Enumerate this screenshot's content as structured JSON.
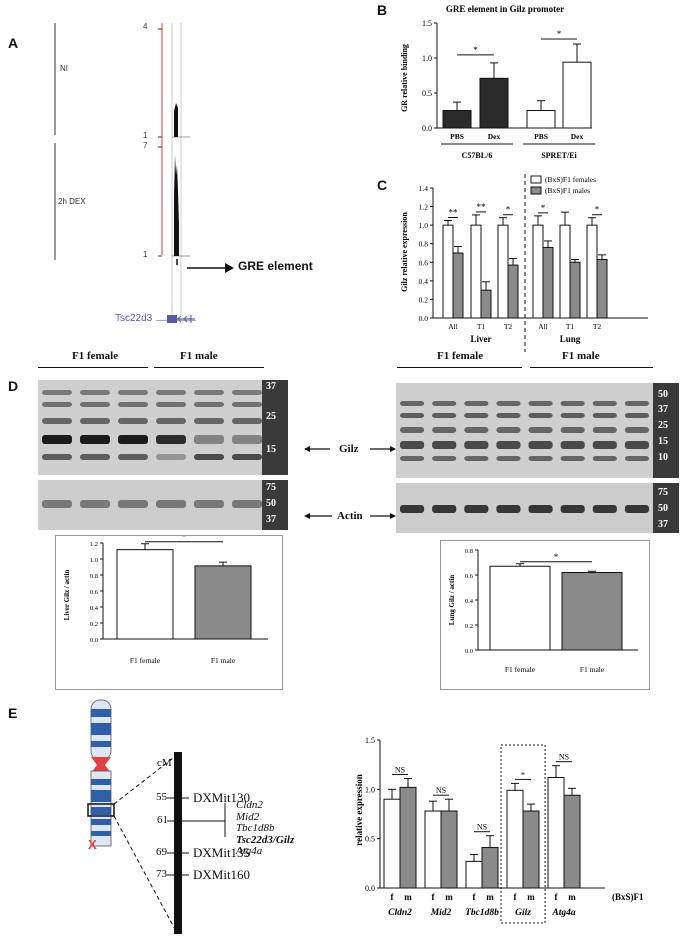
{
  "panel_labels": {
    "a": "A",
    "b": "B",
    "c": "C",
    "d": "D",
    "e": "E"
  },
  "panel_a": {
    "track1": "NI",
    "track2": "2h DEX",
    "scale1_top": "4",
    "scale1_bottom": "1",
    "scale2_top": "7",
    "scale2_bottom": "1",
    "gre_label": "GRE element",
    "gene": "Tsc22d3",
    "colors": {
      "red_line": "#e04040",
      "gene": "#5a5aa8"
    }
  },
  "chart_data": [
    {
      "id": "B",
      "type": "bar",
      "title": "GRE element in Gilz promoter",
      "ylabel": "GR relative binding",
      "ylim": [
        0,
        1.5
      ],
      "yticks": [
        "0.0",
        "0.5",
        "1.0",
        "1.5"
      ],
      "categories": [
        "PBS",
        "Dex",
        "PBS",
        "Dex"
      ],
      "groups": [
        "C57BL/6",
        "SPRET/Ei"
      ],
      "values": [
        0.25,
        0.71,
        0.25,
        0.94
      ],
      "errors": [
        0.12,
        0.22,
        0.14,
        0.26
      ],
      "fills": [
        "#2a2a2a",
        "#2a2a2a",
        "#ffffff",
        "#ffffff"
      ],
      "significance": [
        "*",
        "*"
      ]
    },
    {
      "id": "C",
      "type": "bar",
      "ylabel": "Gilz relative expression",
      "ylim": [
        0,
        1.4
      ],
      "yticks": [
        "0.0",
        "0.2",
        "0.4",
        "0.6",
        "0.8",
        "1.0",
        "1.2",
        "1.4"
      ],
      "categories": [
        "All",
        "T1",
        "T2",
        "All",
        "T1",
        "T2"
      ],
      "groups": [
        "Liver",
        "Lung"
      ],
      "series": [
        {
          "name": "(BxS)F1 females",
          "values": [
            1.0,
            1.0,
            1.0,
            1.0,
            1.0,
            1.0
          ],
          "errors": [
            0.05,
            0.11,
            0.08,
            0.1,
            0.14,
            0.08
          ],
          "color": "#ffffff"
        },
        {
          "name": "(BxS)F1 males",
          "values": [
            0.7,
            0.3,
            0.57,
            0.76,
            0.6,
            0.63
          ],
          "errors": [
            0.07,
            0.09,
            0.07,
            0.07,
            0.03,
            0.05
          ],
          "color": "#8a8a8a"
        }
      ],
      "significance": [
        "**",
        "**",
        "*",
        "*",
        "*"
      ]
    },
    {
      "id": "D-liver",
      "type": "bar",
      "ylabel": "Liver Gilz / actin",
      "ylim": [
        0,
        1.2
      ],
      "yticks": [
        "0.0",
        "0.2",
        "0.4",
        "0.6",
        "0.8",
        "1.0",
        "1.2"
      ],
      "categories": [
        "F1 female",
        "F1 male"
      ],
      "values": [
        1.21,
        0.99
      ],
      "errors": [
        0.08,
        0.05
      ],
      "fills": [
        "#ffffff",
        "#8a8a8a"
      ],
      "significance": [
        "*"
      ]
    },
    {
      "id": "D-lung",
      "type": "bar",
      "ylabel": "Lung Gilz / actin",
      "ylim": [
        0,
        0.8
      ],
      "yticks": [
        "0.0",
        "0.2",
        "0.4",
        "0.6",
        "0.8"
      ],
      "categories": [
        "F1 female",
        "F1 male"
      ],
      "values": [
        0.67,
        0.62
      ],
      "errors": [
        0.02,
        0.01
      ],
      "fills": [
        "#ffffff",
        "#8a8a8a"
      ],
      "significance": [
        "*"
      ]
    },
    {
      "id": "E",
      "type": "bar",
      "ylabel": "relative expression",
      "ylim": [
        0,
        1.5
      ],
      "yticks": [
        "0.0",
        "0.5",
        "1.0",
        "1.5"
      ],
      "categories": [
        "Cldn2",
        "Mid2",
        "Tbc1d8b",
        "Gilz",
        "Atg4a"
      ],
      "sex_labels": [
        "f",
        "m"
      ],
      "suffix": "(BxS)F1",
      "series": [
        {
          "name": "f",
          "values": [
            0.9,
            0.78,
            0.27,
            0.99,
            1.12
          ],
          "errors": [
            0.1,
            0.1,
            0.07,
            0.07,
            0.12
          ],
          "color": "#ffffff"
        },
        {
          "name": "m",
          "values": [
            1.02,
            0.78,
            0.41,
            0.78,
            0.94
          ],
          "errors": [
            0.09,
            0.12,
            0.12,
            0.07,
            0.07
          ],
          "color": "#8a8a8a"
        }
      ],
      "significance": [
        "NS",
        "NS",
        "NS",
        "*",
        "NS"
      ]
    }
  ],
  "panel_d": {
    "female": "F1 female",
    "male": "F1 male",
    "gilz": "Gilz",
    "actin": "Actin",
    "left_markers": [
      "37",
      "25",
      "15"
    ],
    "right_markers": [
      "50",
      "37",
      "25",
      "15",
      "10"
    ],
    "actin_markers": [
      "75",
      "50",
      "37"
    ]
  },
  "panel_e": {
    "cm": "cM",
    "positions": [
      "55",
      "61",
      "69",
      "73"
    ],
    "markers": [
      "DXMit130",
      "DXMit135",
      "DXMit160"
    ],
    "genes": [
      "Cldn2",
      "Mid2",
      "Tbc1d8b",
      "Tsc22d3/Gilz",
      "Atg4a"
    ],
    "cross": "X"
  }
}
